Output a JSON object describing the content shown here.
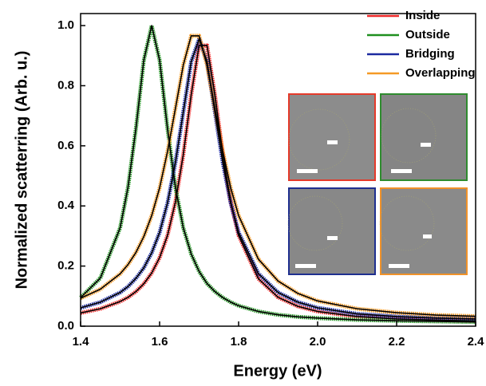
{
  "chart_data": {
    "type": "line",
    "x_label": "Energy (eV)",
    "y_label": "Normalized scatterring (Arb. u.)",
    "x": [
      1.4,
      1.45,
      1.5,
      1.52,
      1.54,
      1.56,
      1.58,
      1.6,
      1.62,
      1.64,
      1.66,
      1.68,
      1.7,
      1.72,
      1.74,
      1.76,
      1.78,
      1.8,
      1.85,
      1.9,
      1.95,
      2.0,
      2.1,
      2.2,
      2.3,
      2.4
    ],
    "series": [
      {
        "name": "Inside",
        "color": "#ee2a2a",
        "values": [
          0.044,
          0.058,
          0.082,
          0.096,
          0.115,
          0.141,
          0.177,
          0.228,
          0.302,
          0.413,
          0.571,
          0.77,
          0.934,
          0.934,
          0.77,
          0.571,
          0.413,
          0.302,
          0.158,
          0.096,
          0.066,
          0.049,
          0.032,
          0.024,
          0.02,
          0.017
        ]
      },
      {
        "name": "Outside",
        "color": "#1f8f1f",
        "values": [
          0.095,
          0.16,
          0.327,
          0.462,
          0.657,
          0.885,
          1.0,
          0.885,
          0.657,
          0.462,
          0.327,
          0.24,
          0.182,
          0.142,
          0.115,
          0.095,
          0.08,
          0.068,
          0.049,
          0.038,
          0.031,
          0.027,
          0.021,
          0.018,
          0.016,
          0.014
        ]
      },
      {
        "name": "Bridging",
        "color": "#1c2aa0",
        "values": [
          0.061,
          0.08,
          0.112,
          0.132,
          0.159,
          0.194,
          0.244,
          0.312,
          0.41,
          0.544,
          0.713,
          0.88,
          0.955,
          0.88,
          0.713,
          0.544,
          0.41,
          0.312,
          0.175,
          0.112,
          0.08,
          0.061,
          0.041,
          0.032,
          0.027,
          0.024
        ]
      },
      {
        "name": "Overlapping",
        "color": "#f59a26",
        "values": [
          0.093,
          0.123,
          0.174,
          0.205,
          0.245,
          0.298,
          0.368,
          0.46,
          0.581,
          0.724,
          0.869,
          0.966,
          0.966,
          0.869,
          0.724,
          0.581,
          0.46,
          0.368,
          0.223,
          0.15,
          0.109,
          0.084,
          0.058,
          0.045,
          0.037,
          0.033
        ]
      }
    ],
    "fit_color": "#000000",
    "xlim": [
      1.4,
      2.4
    ],
    "xticks": [
      1.4,
      1.6,
      1.8,
      {
        "value": 2,
        "label": "2.0"
      },
      2.2,
      2.4
    ],
    "ylim": [
      0,
      1.04
    ],
    "yticks": [
      {
        "value": 0,
        "label": "0.0"
      },
      0.2,
      0.4,
      0.6,
      0.8,
      {
        "value": 1,
        "label": "1.0"
      }
    ]
  }
}
